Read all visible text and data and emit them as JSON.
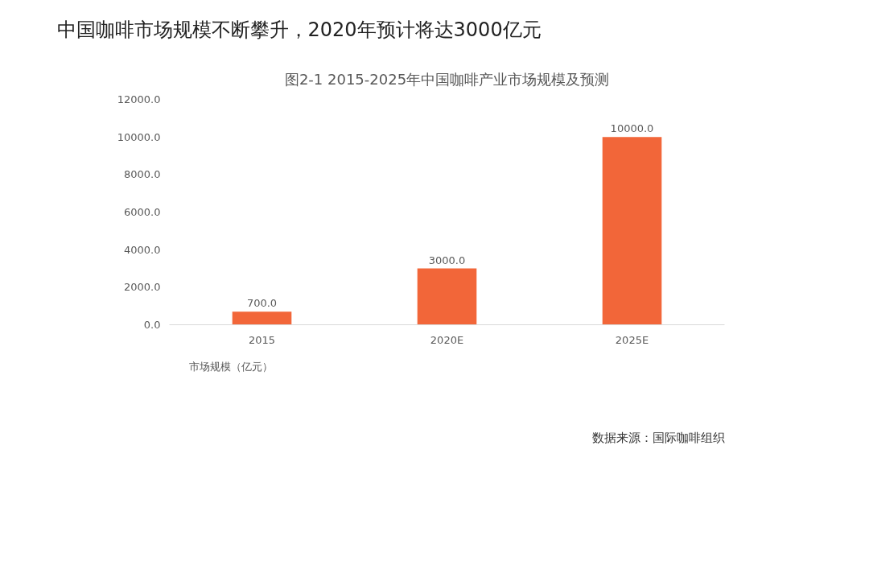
{
  "chart_data": {
    "type": "bar",
    "title": "中国咖啡市场规模不断攀升，2020年预计将达3000亿元",
    "subtitle": "图2-1 2015-2025年中国咖啡产业市场规模及预测",
    "categories": [
      "2015",
      "2020E",
      "2025E"
    ],
    "series": [
      {
        "name": "市场规模（亿元）",
        "color": "#f26639",
        "values": [
          700,
          3000,
          10000
        ],
        "value_labels": [
          "700.0",
          "3000.0",
          "10000.0"
        ]
      }
    ],
    "ylim": [
      0,
      12000
    ],
    "yticks": [
      {
        "value": 0,
        "label": "0.0"
      },
      {
        "value": 2000,
        "label": "2000.0"
      },
      {
        "value": 4000,
        "label": "4000.0"
      },
      {
        "value": 6000,
        "label": "6000.0"
      },
      {
        "value": 8000,
        "label": "8000.0"
      },
      {
        "value": 10000,
        "label": "10000.0"
      },
      {
        "value": 12000,
        "label": "12000.0"
      }
    ],
    "grid": false,
    "legend": "bottom",
    "annotations": [
      "数据来源：国际咖啡组织"
    ]
  }
}
